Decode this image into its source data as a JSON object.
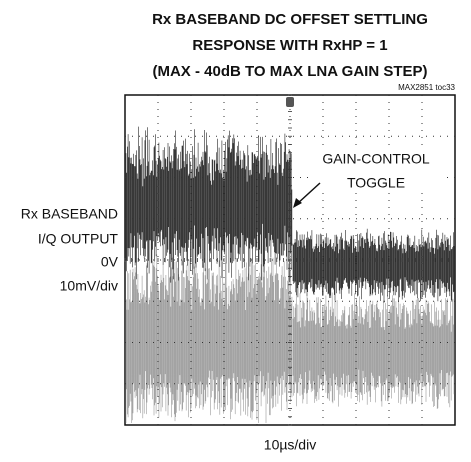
{
  "title": [
    "Rx BASEBAND DC OFFSET SETTLING",
    "RESPONSE WITH RxHP = 1",
    "(MAX - 40dB TO MAX LNA GAIN STEP)"
  ],
  "figure_id": "MAX2851 toc33",
  "y_label": [
    "Rx BASEBAND",
    "I/Q OUTPUT"
  ],
  "zero_label": "0V",
  "y_scale": "10mV/div",
  "x_scale": "10µs/div",
  "annotation": [
    "GAIN-CONTROL",
    "TOGGLE"
  ]
}
